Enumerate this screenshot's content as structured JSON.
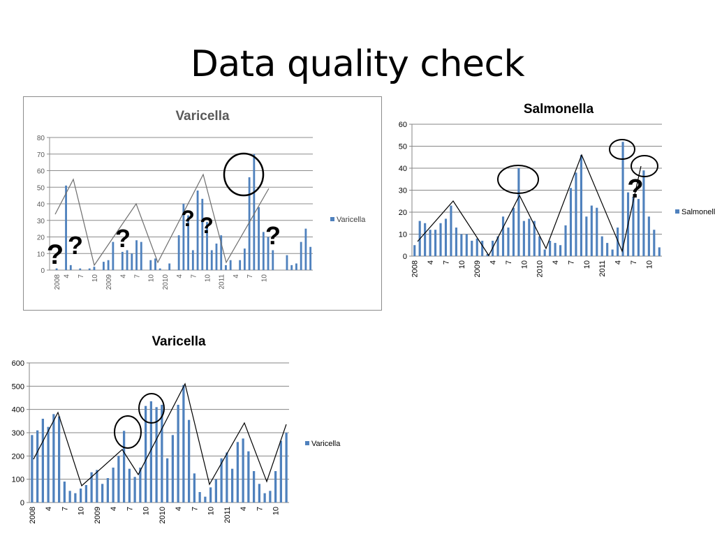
{
  "slide": {
    "title": "Data quality check"
  },
  "chart_data": [
    {
      "type": "bar",
      "title": "Varicella",
      "legend_position": "right",
      "series": [
        {
          "name": "Varicella",
          "color": "#4f81bd"
        }
      ],
      "ylim": [
        0,
        80
      ],
      "yticks": [
        0,
        10,
        20,
        30,
        40,
        50,
        60,
        70,
        80
      ],
      "grid": true,
      "x_tick_labels": [
        "2008",
        "4",
        "7",
        "10",
        "2009",
        "4",
        "7",
        "10",
        "2010",
        "4",
        "7",
        "10",
        "2011",
        "4",
        "7",
        "10"
      ],
      "values": [
        0,
        1,
        0,
        51,
        3,
        0,
        1,
        0,
        1,
        2,
        0,
        5,
        6,
        17,
        0,
        11,
        12,
        10,
        18,
        17,
        0,
        6,
        7,
        1,
        0,
        4,
        0,
        21,
        40,
        33,
        12,
        48,
        43,
        29,
        12,
        16,
        21,
        3,
        6,
        0,
        6,
        13,
        56,
        70,
        38,
        23,
        20,
        12,
        0,
        0,
        9,
        3,
        4,
        17,
        25,
        14
      ],
      "annotations": {
        "question_marks": 6,
        "circles": 1
      }
    },
    {
      "type": "bar",
      "title": "Salmonella",
      "legend_position": "right",
      "series": [
        {
          "name": "Salmonella",
          "color": "#4f81bd"
        }
      ],
      "ylim": [
        0,
        60
      ],
      "yticks": [
        0,
        10,
        20,
        30,
        40,
        50,
        60
      ],
      "grid": true,
      "x_tick_labels": [
        "2008",
        "4",
        "7",
        "10",
        "2009",
        "4",
        "7",
        "10",
        "2010",
        "4",
        "7",
        "10",
        "2011",
        "4",
        "7",
        "10"
      ],
      "values": [
        5,
        16,
        15,
        12,
        12,
        15,
        17,
        23,
        13,
        10,
        10,
        7,
        8,
        7,
        1,
        7,
        9,
        18,
        13,
        22,
        40,
        16,
        17,
        16,
        9,
        3,
        7,
        6,
        5,
        14,
        31,
        38,
        46,
        18,
        23,
        22,
        9,
        6,
        3,
        13,
        52,
        29,
        27,
        26,
        39,
        18,
        12,
        4
      ],
      "annotations": {
        "question_marks": 1,
        "circles": 3
      }
    },
    {
      "type": "bar",
      "title": "Varicella",
      "legend_position": "right",
      "series": [
        {
          "name": "Varicella",
          "color": "#4f81bd"
        }
      ],
      "ylim": [
        0,
        600
      ],
      "yticks": [
        0,
        100,
        200,
        300,
        400,
        500,
        600
      ],
      "grid": true,
      "x_tick_labels": [
        "2008",
        "4",
        "7",
        "10",
        "2009",
        "4",
        "7",
        "10",
        "2010",
        "4",
        "7",
        "10",
        "2011",
        "4",
        "7",
        "10"
      ],
      "values": [
        290,
        310,
        360,
        325,
        380,
        370,
        90,
        50,
        40,
        60,
        75,
        130,
        140,
        80,
        105,
        150,
        200,
        308,
        145,
        110,
        150,
        415,
        435,
        410,
        420,
        190,
        290,
        420,
        505,
        355,
        125,
        45,
        25,
        65,
        100,
        190,
        215,
        145,
        260,
        275,
        220,
        135,
        80,
        40,
        50,
        135,
        265,
        300
      ],
      "annotations": {
        "circles": 2
      }
    }
  ]
}
